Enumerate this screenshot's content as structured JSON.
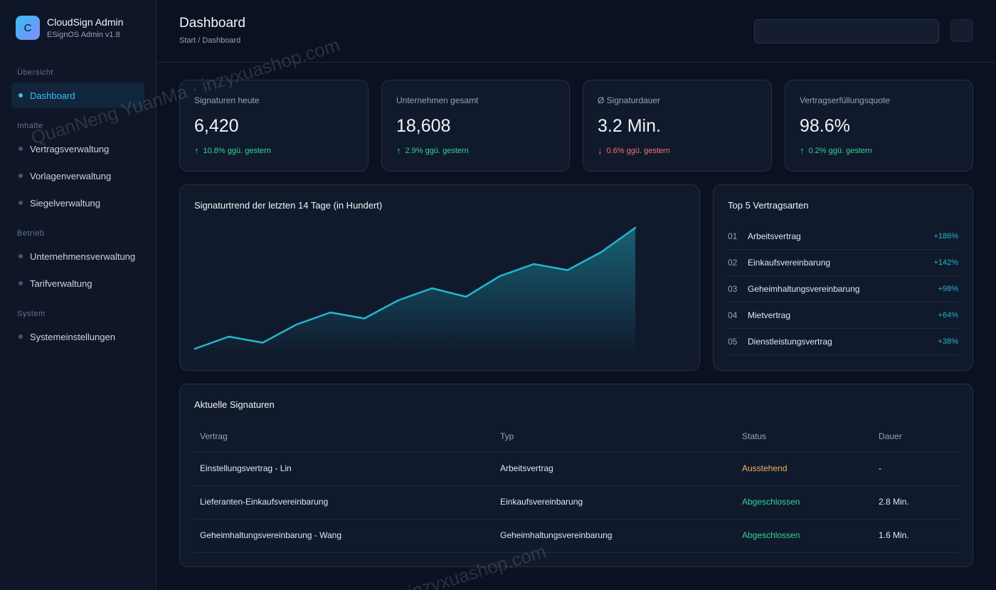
{
  "brand": {
    "logo_letter": "C",
    "name": "CloudSign Admin",
    "version": "ESignOS Admin v1.8"
  },
  "nav": {
    "sections": [
      {
        "label": "Übersicht",
        "items": [
          {
            "label": "Dashboard",
            "active": true
          }
        ]
      },
      {
        "label": "Inhalte",
        "items": [
          {
            "label": "Vertragsverwaltung"
          },
          {
            "label": "Vorlagenverwaltung"
          },
          {
            "label": "Siegelverwaltung"
          }
        ]
      },
      {
        "label": "Betrieb",
        "items": [
          {
            "label": "Unternehmensverwaltung"
          },
          {
            "label": "Tarifverwaltung"
          }
        ]
      },
      {
        "label": "System",
        "items": [
          {
            "label": "Systemeinstellungen"
          }
        ]
      }
    ]
  },
  "header": {
    "title": "Dashboard",
    "breadcrumb": "Start / Dashboard",
    "search_value": ""
  },
  "kpis": [
    {
      "label": "Signaturen heute",
      "value": "6,420",
      "trend": "10.8% ggü. gestern",
      "direction": "up"
    },
    {
      "label": "Unternehmen gesamt",
      "value": "18,608",
      "trend": "2.9% ggü. gestern",
      "direction": "up"
    },
    {
      "label": "Ø Signaturdauer",
      "value": "3.2 Min.",
      "trend": "0.6% ggü. gestern",
      "direction": "down"
    },
    {
      "label": "Vertragserfüllungsquote",
      "value": "98.6%",
      "trend": "0.2% ggü. gestern",
      "direction": "up"
    }
  ],
  "trend_arrows": {
    "up": "↑",
    "down": "↓"
  },
  "chart_data": {
    "type": "area",
    "title": "Signaturtrend der letzten 14 Tage (in Hundert)",
    "x": [
      1,
      2,
      3,
      4,
      5,
      6,
      7,
      8,
      9,
      10,
      11,
      12,
      13,
      14
    ],
    "series": [
      {
        "values": [
          0,
          10,
          5,
          20,
          30,
          25,
          40,
          50,
          43,
          60,
          70,
          65,
          80,
          100
        ]
      }
    ],
    "grid": false,
    "line_color": "#22b8cf"
  },
  "top5": {
    "title": "Top 5 Vertragsarten",
    "items": [
      {
        "rank": "01",
        "name": "Arbeitsvertrag",
        "value": "+186%"
      },
      {
        "rank": "02",
        "name": "Einkaufsvereinbarung",
        "value": "+142%"
      },
      {
        "rank": "03",
        "name": "Geheimhaltungsvereinbarung",
        "value": "+98%"
      },
      {
        "rank": "04",
        "name": "Mietvertrag",
        "value": "+64%"
      },
      {
        "rank": "05",
        "name": "Dienstleistungsvertrag",
        "value": "+38%"
      }
    ]
  },
  "table": {
    "title": "Aktuelle Signaturen",
    "columns": [
      "Vertrag",
      "Typ",
      "Status",
      "Dauer"
    ],
    "rows": [
      {
        "contract": "Einstellungsvertrag - Lin",
        "type": "Arbeitsvertrag",
        "status": "Ausstehend",
        "status_kind": "pending",
        "duration": "-"
      },
      {
        "contract": "Lieferanten-Einkaufsvereinbarung",
        "type": "Einkaufsvereinbarung",
        "status": "Abgeschlossen",
        "status_kind": "done",
        "duration": "2.8 Min."
      },
      {
        "contract": "Geheimhaltungsvereinbarung - Wang",
        "type": "Geheimhaltungsvereinbarung",
        "status": "Abgeschlossen",
        "status_kind": "done",
        "duration": "1.6 Min."
      }
    ]
  },
  "watermark": {
    "text_1": "QuanNeng YuanMa · inzyxuashop.com",
    "text_2": "inzyxuashop.com"
  },
  "colors": {
    "accent": "#38bdf8",
    "up": "#34d399",
    "down": "#f87171",
    "pending": "#f0b35a",
    "background": "#0b1120"
  }
}
